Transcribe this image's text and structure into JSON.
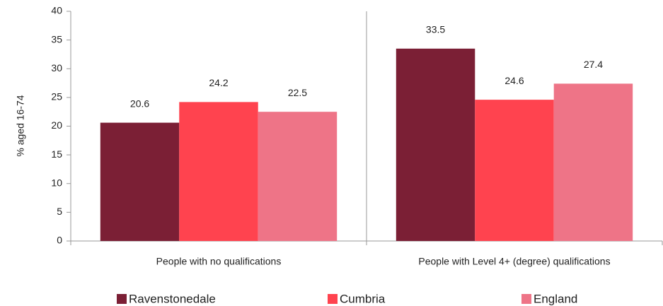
{
  "chart_data": {
    "type": "bar",
    "y_label": "% aged 16-74",
    "categories": [
      "People with no qualifications",
      "People with Level 4+ (degree) qualifications"
    ],
    "series": [
      {
        "name": "Ravenstonedale",
        "color": "#7b1f35",
        "values": [
          20.6,
          33.5
        ]
      },
      {
        "name": "Cumbria",
        "color": "#ff434f",
        "values": [
          24.2,
          24.6
        ]
      },
      {
        "name": "England",
        "color": "#ee7487",
        "values": [
          22.5,
          27.4
        ]
      }
    ],
    "ylim": [
      0,
      40
    ],
    "yticks": [
      0,
      5,
      10,
      15,
      20,
      25,
      30,
      35,
      40
    ],
    "grid": false,
    "legend": "bottom"
  }
}
